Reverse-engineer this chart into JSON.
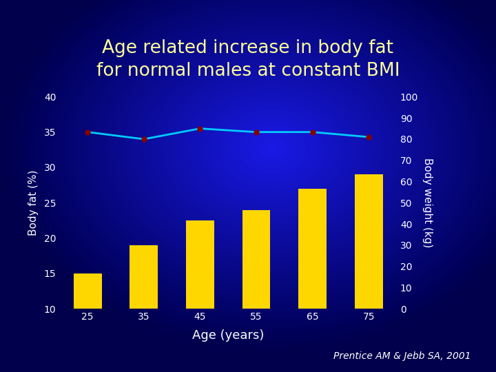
{
  "title": "Age related increase in body fat\nfor normal males at constant BMI",
  "title_color": "#FFFF99",
  "title_fontsize": 19,
  "xlabel": "Age (years)",
  "xlabel_color": "white",
  "xlabel_fontsize": 13,
  "ylabel_left": "Body fat (%)",
  "ylabel_right": "Body weight (kg)",
  "ylabel_color": "white",
  "ylabel_fontsize": 11,
  "ages": [
    25,
    35,
    45,
    55,
    65,
    75
  ],
  "bar_values": [
    15,
    19,
    22.5,
    24,
    27,
    29
  ],
  "bar_color": "#FFD700",
  "line_values": [
    35.0,
    34.0,
    35.5,
    35.0,
    35.0,
    34.3
  ],
  "line_color": "#00CCFF",
  "line_marker_color": "#880000",
  "line_marker_size": 5,
  "ylim_left": [
    10,
    40
  ],
  "ylim_right": [
    0,
    100
  ],
  "yticks_left": [
    10,
    15,
    20,
    25,
    30,
    35,
    40
  ],
  "yticks_right": [
    0,
    10,
    20,
    30,
    40,
    50,
    60,
    70,
    80,
    90,
    100
  ],
  "tick_color": "white",
  "tick_fontsize": 10,
  "annotation": "Prentice AM & Jebb SA, 2001",
  "annotation_color": "white",
  "annotation_fontsize": 10
}
